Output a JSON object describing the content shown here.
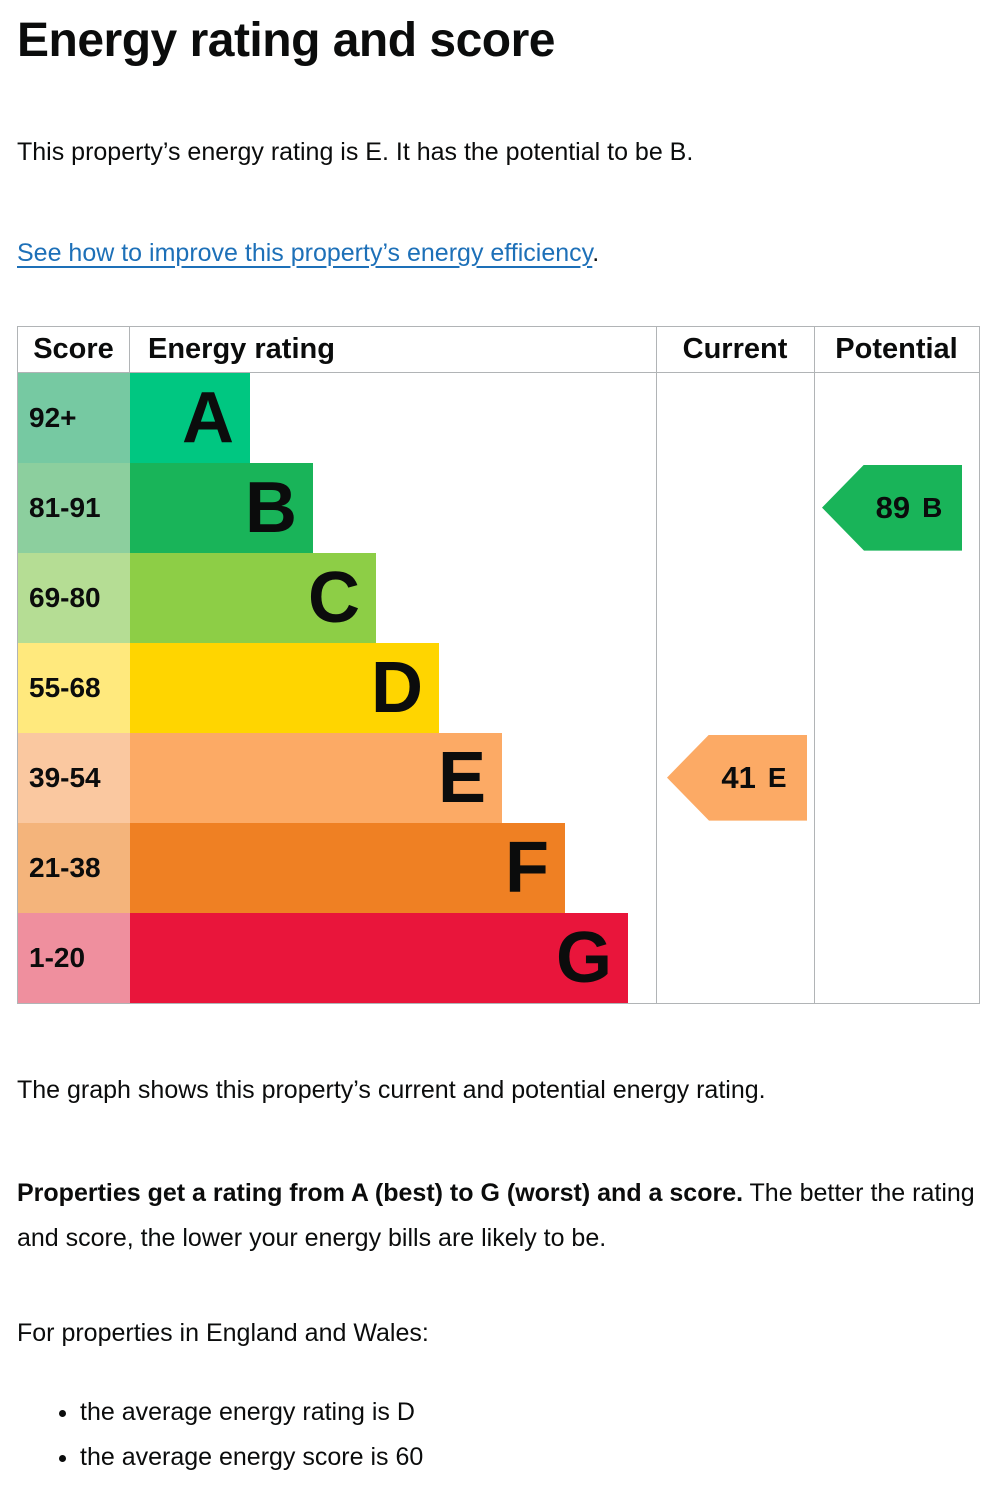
{
  "page": {
    "title": "Energy rating and score",
    "intro": "This property’s energy rating is E. It has the potential to be B.",
    "link_text": "See how to improve this property’s energy efficiency",
    "link_suffix": ".",
    "caption": "The graph shows this property’s current and potential energy rating.",
    "lead_bold": "Properties get a rating from A (best) to G (worst) and a score.",
    "lead_rest": " The better the rating and score, the lower your energy bills are likely to be.",
    "region_heading": "For properties in England and Wales:",
    "bullets": [
      "the average energy rating is D",
      "the average energy score is 60"
    ]
  },
  "chart": {
    "headers": {
      "score": "Score",
      "rating": "Energy rating",
      "current": "Current",
      "potential": "Potential"
    },
    "bands": [
      {
        "score": "92+",
        "letter": "A",
        "bar_color": "#00c781",
        "score_color": "#76c9a2"
      },
      {
        "score": "81-91",
        "letter": "B",
        "bar_color": "#19b459",
        "score_color": "#8ccf9e"
      },
      {
        "score": "69-80",
        "letter": "C",
        "bar_color": "#8dce46",
        "score_color": "#b5dd94"
      },
      {
        "score": "55-68",
        "letter": "D",
        "bar_color": "#ffd500",
        "score_color": "#ffe97d"
      },
      {
        "score": "39-54",
        "letter": "E",
        "bar_color": "#fcaa65",
        "score_color": "#fac8a0"
      },
      {
        "score": "21-38",
        "letter": "F",
        "bar_color": "#ef8023",
        "score_color": "#f4b47b"
      },
      {
        "score": "1-20",
        "letter": "G",
        "bar_color": "#e9153b",
        "score_color": "#ef8f9e"
      }
    ],
    "current": {
      "value": "41",
      "letter": "E",
      "band_index": 4,
      "color": "#fcaa65"
    },
    "potential": {
      "value": "89",
      "letter": "B",
      "band_index": 1,
      "color": "#19b459"
    },
    "border_color": "#b1b4b6"
  },
  "chart_data": {
    "type": "epc-energy-rating",
    "title": "Energy rating and score",
    "columns": [
      "Score",
      "Energy rating",
      "Current",
      "Potential"
    ],
    "bands": [
      {
        "rating": "A",
        "score_range": "92+"
      },
      {
        "rating": "B",
        "score_range": "81-91"
      },
      {
        "rating": "C",
        "score_range": "69-80"
      },
      {
        "rating": "D",
        "score_range": "55-68"
      },
      {
        "rating": "E",
        "score_range": "39-54"
      },
      {
        "rating": "F",
        "score_range": "21-38"
      },
      {
        "rating": "G",
        "score_range": "1-20"
      }
    ],
    "current": {
      "score": 41,
      "rating": "E"
    },
    "potential": {
      "score": 89,
      "rating": "B"
    }
  }
}
